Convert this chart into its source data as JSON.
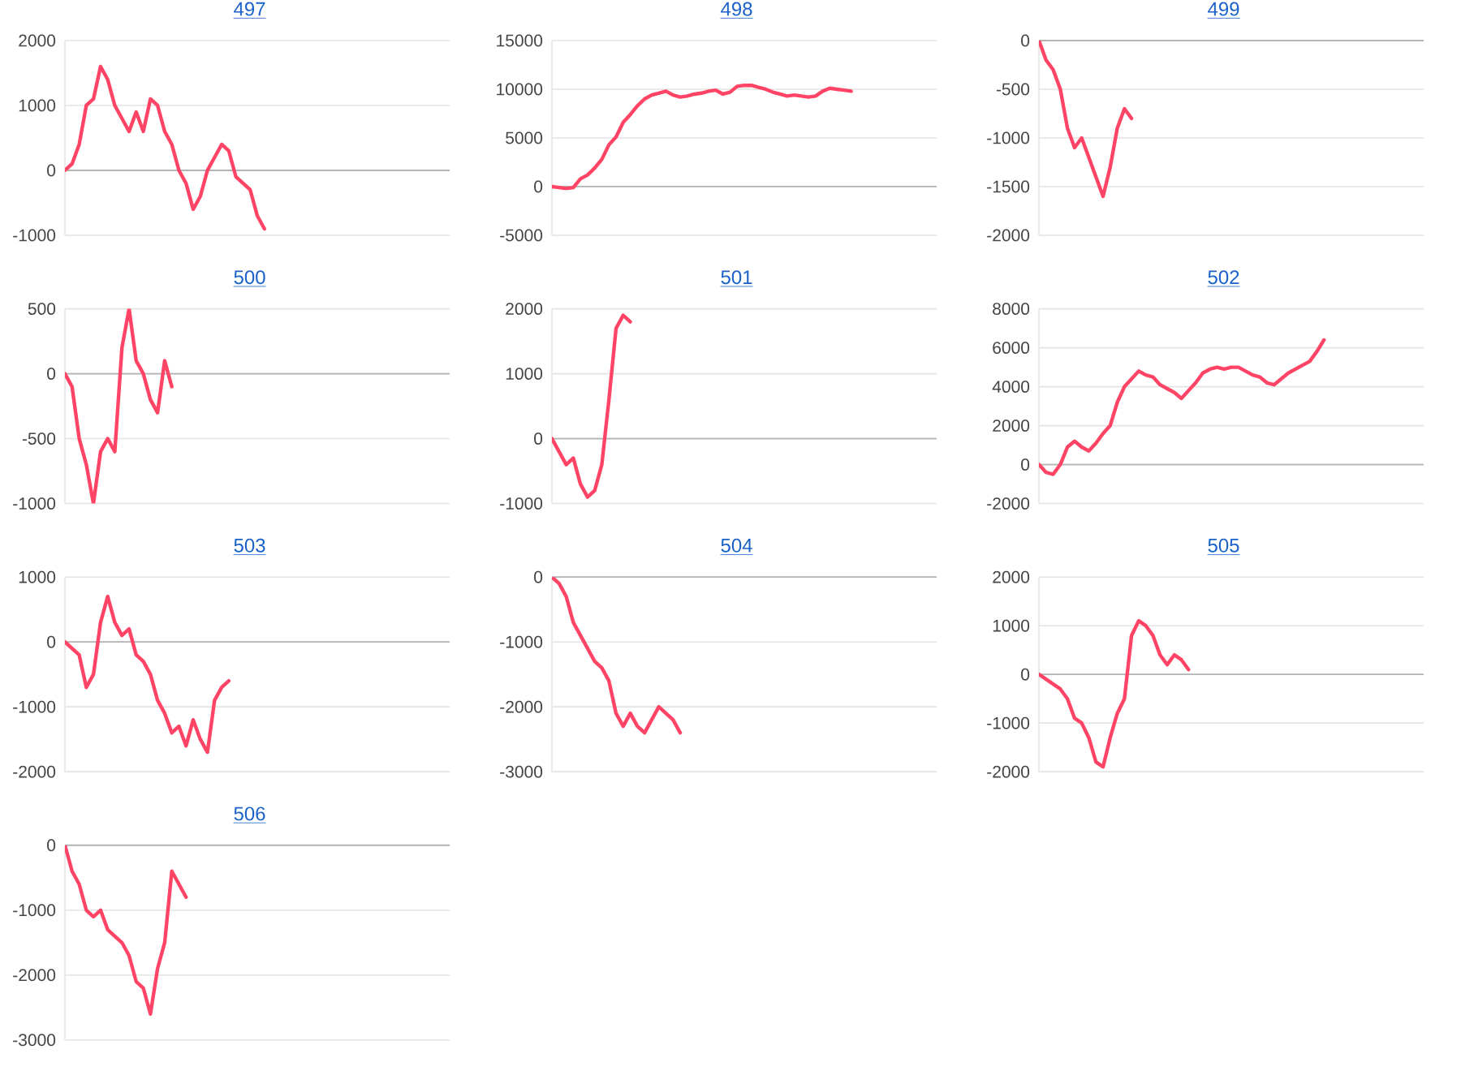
{
  "chart_data": [
    {
      "type": "line",
      "title": "497",
      "categories": [
        null,
        null,
        null,
        null,
        null,
        null,
        null,
        null,
        null,
        null,
        null,
        null,
        null,
        null,
        null,
        null,
        null,
        null,
        null,
        null,
        null,
        null,
        null,
        null,
        null,
        null,
        null,
        null,
        null,
        null,
        null,
        null,
        null,
        null,
        null,
        null,
        null,
        null,
        null,
        null,
        null,
        null,
        null,
        null,
        null,
        null,
        null,
        null,
        null,
        null,
        null,
        null,
        null,
        null,
        null
      ],
      "values": [
        0,
        100,
        400,
        1000,
        1100,
        1600,
        1400,
        1000,
        800,
        600,
        900,
        600,
        1100,
        1000,
        600,
        400,
        0,
        -200,
        -600,
        -400,
        0,
        200,
        400,
        300,
        -100,
        -200,
        -300,
        -700,
        -900,
        null,
        null,
        null,
        null,
        null,
        null,
        null,
        null,
        null,
        null,
        null,
        null,
        null,
        null,
        null,
        null,
        null,
        null,
        null,
        null,
        null,
        null,
        null,
        null,
        null,
        null
      ],
      "color": "#ff4466",
      "ylim": [
        -1000,
        2000
      ],
      "yticks": [
        -1000,
        0,
        1000,
        2000
      ],
      "grid": "y",
      "tick_labels": "y"
    },
    {
      "type": "line",
      "title": "498",
      "categories": [
        null,
        null,
        null,
        null,
        null,
        null,
        null,
        null,
        null,
        null,
        null,
        null,
        null,
        null,
        null,
        null,
        null,
        null,
        null,
        null,
        null,
        null,
        null,
        null,
        null,
        null,
        null,
        null,
        null,
        null,
        null,
        null,
        null,
        null,
        null,
        null,
        null,
        null,
        null,
        null,
        null,
        null,
        null,
        null,
        null,
        null,
        null,
        null,
        null,
        null,
        null,
        null,
        null,
        null,
        null
      ],
      "values": [
        0,
        -100,
        -200,
        -100,
        800,
        1200,
        1900,
        2800,
        4300,
        5100,
        6600,
        7400,
        8300,
        9000,
        9400,
        9600,
        9800,
        9400,
        9200,
        9300,
        9500,
        9600,
        9800,
        9900,
        9500,
        9700,
        10300,
        10400,
        10400,
        10200,
        10000,
        9700,
        9500,
        9300,
        9400,
        9300,
        9200,
        9300,
        9800,
        10100,
        10000,
        9900,
        9800,
        null,
        null,
        null,
        null,
        null,
        null,
        null,
        null,
        null,
        null,
        null,
        null
      ],
      "color": "#ff4466",
      "ylim": [
        -5000,
        15000
      ],
      "yticks": [
        -5000,
        0,
        5000,
        10000,
        15000
      ],
      "grid": "y",
      "tick_labels": "y"
    },
    {
      "type": "line",
      "title": "499",
      "categories": [
        null,
        null,
        null,
        null,
        null,
        null,
        null,
        null,
        null,
        null,
        null,
        null,
        null,
        null,
        null,
        null,
        null,
        null,
        null,
        null,
        null,
        null,
        null,
        null,
        null,
        null,
        null,
        null,
        null,
        null,
        null,
        null,
        null,
        null,
        null,
        null,
        null,
        null,
        null,
        null,
        null,
        null,
        null,
        null,
        null,
        null,
        null,
        null,
        null,
        null,
        null,
        null,
        null,
        null,
        null
      ],
      "values": [
        0,
        -200,
        -300,
        -500,
        -900,
        -1100,
        -1000,
        -1200,
        -1400,
        -1600,
        -1300,
        -900,
        -700,
        -800,
        null,
        null,
        null,
        null,
        null,
        null,
        null,
        null,
        null,
        null,
        null,
        null,
        null,
        null,
        null,
        null,
        null,
        null,
        null,
        null,
        null,
        null,
        null,
        null,
        null,
        null,
        null,
        null,
        null,
        null,
        null,
        null,
        null,
        null,
        null,
        null,
        null,
        null,
        null,
        null,
        null
      ],
      "color": "#ff4466",
      "ylim": [
        -2000,
        0
      ],
      "yticks": [
        -2000,
        -1500,
        -1000,
        -500,
        0
      ],
      "grid": "y",
      "tick_labels": "y"
    },
    {
      "type": "line",
      "title": "500",
      "categories": [
        null,
        null,
        null,
        null,
        null,
        null,
        null,
        null,
        null,
        null,
        null,
        null,
        null,
        null,
        null,
        null,
        null,
        null,
        null,
        null,
        null,
        null,
        null,
        null,
        null,
        null,
        null,
        null,
        null,
        null,
        null,
        null,
        null,
        null,
        null,
        null,
        null,
        null,
        null,
        null,
        null,
        null,
        null,
        null,
        null,
        null,
        null,
        null,
        null,
        null,
        null,
        null,
        null,
        null,
        null
      ],
      "values": [
        0,
        -100,
        -500,
        -700,
        -1000,
        -600,
        -500,
        -600,
        200,
        500,
        100,
        0,
        -200,
        -300,
        100,
        -100,
        null,
        null,
        null,
        null,
        null,
        null,
        null,
        null,
        null,
        null,
        null,
        null,
        null,
        null,
        null,
        null,
        null,
        null,
        null,
        null,
        null,
        null,
        null,
        null,
        null,
        null,
        null,
        null,
        null,
        null,
        null,
        null,
        null,
        null,
        null,
        null,
        null,
        null,
        null
      ],
      "color": "#ff4466",
      "ylim": [
        -1000,
        500
      ],
      "yticks": [
        -1000,
        -500,
        0,
        500
      ],
      "grid": "y",
      "tick_labels": "y"
    },
    {
      "type": "line",
      "title": "501",
      "categories": [
        null,
        null,
        null,
        null,
        null,
        null,
        null,
        null,
        null,
        null,
        null,
        null,
        null,
        null,
        null,
        null,
        null,
        null,
        null,
        null,
        null,
        null,
        null,
        null,
        null,
        null,
        null,
        null,
        null,
        null,
        null,
        null,
        null,
        null,
        null,
        null,
        null,
        null,
        null,
        null,
        null,
        null,
        null,
        null,
        null,
        null,
        null,
        null,
        null,
        null,
        null,
        null,
        null,
        null,
        null
      ],
      "values": [
        0,
        -200,
        -400,
        -300,
        -700,
        -900,
        -800,
        -400,
        600,
        1700,
        1900,
        1800,
        null,
        null,
        null,
        null,
        null,
        null,
        null,
        null,
        null,
        null,
        null,
        null,
        null,
        null,
        null,
        null,
        null,
        null,
        null,
        null,
        null,
        null,
        null,
        null,
        null,
        null,
        null,
        null,
        null,
        null,
        null,
        null,
        null,
        null,
        null,
        null,
        null,
        null,
        null,
        null,
        null,
        null,
        null
      ],
      "color": "#ff4466",
      "ylim": [
        -1000,
        2000
      ],
      "yticks": [
        -1000,
        0,
        1000,
        2000
      ],
      "grid": "y",
      "tick_labels": "y"
    },
    {
      "type": "line",
      "title": "502",
      "categories": [
        null,
        null,
        null,
        null,
        null,
        null,
        null,
        null,
        null,
        null,
        null,
        null,
        null,
        null,
        null,
        null,
        null,
        null,
        null,
        null,
        null,
        null,
        null,
        null,
        null,
        null,
        null,
        null,
        null,
        null,
        null,
        null,
        null,
        null,
        null,
        null,
        null,
        null,
        null,
        null,
        null,
        null,
        null,
        null,
        null,
        null,
        null,
        null,
        null,
        null,
        null,
        null,
        null,
        null,
        null
      ],
      "values": [
        0,
        -400,
        -500,
        0,
        900,
        1200,
        900,
        700,
        1100,
        1600,
        2000,
        3200,
        4000,
        4400,
        4800,
        4600,
        4500,
        4100,
        3900,
        3700,
        3400,
        3800,
        4200,
        4700,
        4900,
        5000,
        4900,
        5000,
        5000,
        4800,
        4600,
        4500,
        4200,
        4100,
        4400,
        4700,
        4900,
        5100,
        5300,
        5800,
        6400,
        null,
        null,
        null,
        null,
        null,
        null,
        null,
        null,
        null,
        null,
        null,
        null,
        null,
        null
      ],
      "color": "#ff4466",
      "ylim": [
        -2000,
        8000
      ],
      "yticks": [
        -2000,
        0,
        2000,
        4000,
        6000,
        8000
      ],
      "grid": "y",
      "tick_labels": "y"
    },
    {
      "type": "line",
      "title": "503",
      "categories": [
        null,
        null,
        null,
        null,
        null,
        null,
        null,
        null,
        null,
        null,
        null,
        null,
        null,
        null,
        null,
        null,
        null,
        null,
        null,
        null,
        null,
        null,
        null,
        null,
        null,
        null,
        null,
        null,
        null,
        null,
        null,
        null,
        null,
        null,
        null,
        null,
        null,
        null,
        null,
        null,
        null,
        null,
        null,
        null,
        null,
        null,
        null,
        null,
        null,
        null,
        null,
        null,
        null,
        null,
        null
      ],
      "values": [
        0,
        -100,
        -200,
        -700,
        -500,
        300,
        700,
        300,
        100,
        200,
        -200,
        -300,
        -500,
        -900,
        -1100,
        -1400,
        -1300,
        -1600,
        -1200,
        -1500,
        -1700,
        -900,
        -700,
        -600,
        null,
        null,
        null,
        null,
        null,
        null,
        null,
        null,
        null,
        null,
        null,
        null,
        null,
        null,
        null,
        null,
        null,
        null,
        null,
        null,
        null,
        null,
        null,
        null,
        null,
        null,
        null,
        null,
        null,
        null,
        null
      ],
      "color": "#ff4466",
      "ylim": [
        -2000,
        1000
      ],
      "yticks": [
        -2000,
        -1000,
        0,
        1000
      ],
      "grid": "y",
      "tick_labels": "y"
    },
    {
      "type": "line",
      "title": "504",
      "categories": [
        null,
        null,
        null,
        null,
        null,
        null,
        null,
        null,
        null,
        null,
        null,
        null,
        null,
        null,
        null,
        null,
        null,
        null,
        null,
        null,
        null,
        null,
        null,
        null,
        null,
        null,
        null,
        null,
        null,
        null,
        null,
        null,
        null,
        null,
        null,
        null,
        null,
        null,
        null,
        null,
        null,
        null,
        null,
        null,
        null,
        null,
        null,
        null,
        null,
        null,
        null,
        null,
        null,
        null,
        null
      ],
      "values": [
        0,
        -100,
        -300,
        -700,
        -900,
        -1100,
        -1300,
        -1400,
        -1600,
        -2100,
        -2300,
        -2100,
        -2300,
        -2400,
        -2200,
        -2000,
        -2100,
        -2200,
        -2400,
        null,
        null,
        null,
        null,
        null,
        null,
        null,
        null,
        null,
        null,
        null,
        null,
        null,
        null,
        null,
        null,
        null,
        null,
        null,
        null,
        null,
        null,
        null,
        null,
        null,
        null,
        null,
        null,
        null,
        null,
        null,
        null,
        null,
        null,
        null,
        null
      ],
      "color": "#ff4466",
      "ylim": [
        -3000,
        0
      ],
      "yticks": [
        -3000,
        -2000,
        -1000,
        0
      ],
      "grid": "y",
      "tick_labels": "y"
    },
    {
      "type": "line",
      "title": "505",
      "categories": [
        null,
        null,
        null,
        null,
        null,
        null,
        null,
        null,
        null,
        null,
        null,
        null,
        null,
        null,
        null,
        null,
        null,
        null,
        null,
        null,
        null,
        null,
        null,
        null,
        null,
        null,
        null,
        null,
        null,
        null,
        null,
        null,
        null,
        null,
        null,
        null,
        null,
        null,
        null,
        null,
        null,
        null,
        null,
        null,
        null,
        null,
        null,
        null,
        null,
        null,
        null,
        null,
        null,
        null,
        null
      ],
      "values": [
        0,
        -100,
        -200,
        -300,
        -500,
        -900,
        -1000,
        -1300,
        -1800,
        -1900,
        -1300,
        -800,
        -500,
        800,
        1100,
        1000,
        800,
        400,
        200,
        400,
        300,
        100,
        null,
        null,
        null,
        null,
        null,
        null,
        null,
        null,
        null,
        null,
        null,
        null,
        null,
        null,
        null,
        null,
        null,
        null,
        null,
        null,
        null,
        null,
        null,
        null,
        null,
        null,
        null,
        null,
        null,
        null,
        null,
        null,
        null
      ],
      "color": "#ff4466",
      "ylim": [
        -2000,
        2000
      ],
      "yticks": [
        -2000,
        -1000,
        0,
        1000,
        2000
      ],
      "grid": "y",
      "tick_labels": "y"
    },
    {
      "type": "line",
      "title": "506",
      "categories": [
        null,
        null,
        null,
        null,
        null,
        null,
        null,
        null,
        null,
        null,
        null,
        null,
        null,
        null,
        null,
        null,
        null,
        null,
        null,
        null,
        null,
        null,
        null,
        null,
        null,
        null,
        null,
        null,
        null,
        null,
        null,
        null,
        null,
        null,
        null,
        null,
        null,
        null,
        null,
        null,
        null,
        null,
        null,
        null,
        null,
        null,
        null,
        null,
        null,
        null,
        null,
        null,
        null,
        null,
        null
      ],
      "values": [
        0,
        -400,
        -600,
        -1000,
        -1100,
        -1000,
        -1300,
        -1400,
        -1500,
        -1700,
        -2100,
        -2200,
        -2600,
        -1900,
        -1500,
        -400,
        -600,
        -800,
        null,
        null,
        null,
        null,
        null,
        null,
        null,
        null,
        null,
        null,
        null,
        null,
        null,
        null,
        null,
        null,
        null,
        null,
        null,
        null,
        null,
        null,
        null,
        null,
        null,
        null,
        null,
        null,
        null,
        null,
        null,
        null,
        null,
        null,
        null,
        null,
        null
      ],
      "color": "#ff4466",
      "ylim": [
        -3000,
        0
      ],
      "yticks": [
        -3000,
        -2000,
        -1000,
        0
      ],
      "grid": "y",
      "tick_labels": "y"
    }
  ]
}
